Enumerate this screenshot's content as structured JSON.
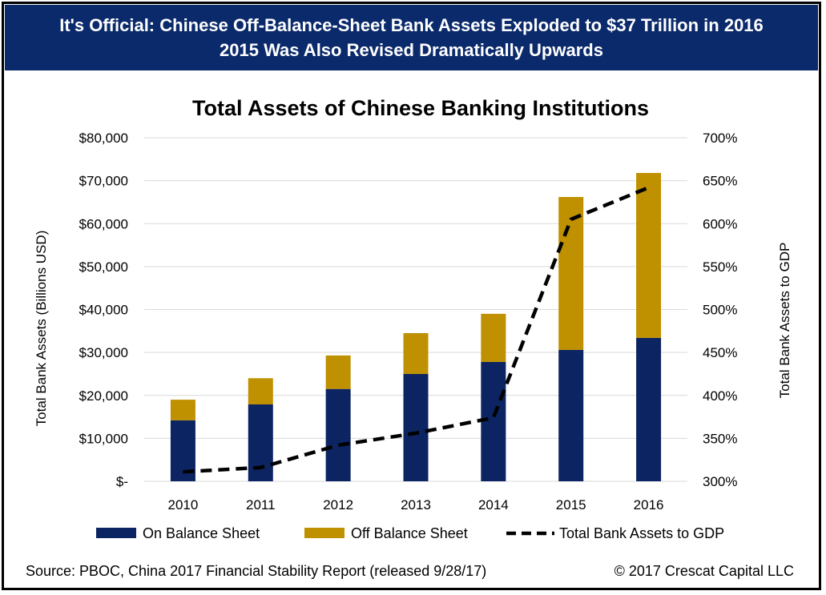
{
  "banner": {
    "line1": "It's Official: Chinese Off-Balance-Sheet Bank Assets Exploded to $37 Trillion in 2016",
    "line2": "2015 Was Also Revised Dramatically Upwards"
  },
  "footer": {
    "source": "Source: PBOC, China 2017 Financial Stability Report (released 9/28/17)",
    "copyright": "© 2017 Crescat Capital LLC"
  },
  "colors": {
    "on_balance": "#0c2461",
    "off_balance": "#bf9000",
    "line": "#000000",
    "banner": "#0b2a6b",
    "grid": "#d9d9d9"
  },
  "chart_data": {
    "type": "bar",
    "title": "Total Assets of Chinese Banking Institutions",
    "ylabel": "Total Bank Assets (Billions USD)",
    "y2label": "Total Bank Assets to GDP",
    "ylim": [
      0,
      80000
    ],
    "y2lim": [
      300,
      700
    ],
    "yticks": [
      "$-",
      "$10,000",
      "$20,000",
      "$30,000",
      "$40,000",
      "$50,000",
      "$60,000",
      "$70,000",
      "$80,000"
    ],
    "y2ticks": [
      "300%",
      "350%",
      "400%",
      "450%",
      "500%",
      "550%",
      "600%",
      "650%",
      "700%"
    ],
    "categories": [
      "2010",
      "2011",
      "2012",
      "2013",
      "2014",
      "2015",
      "2016"
    ],
    "stacked": true,
    "series": [
      {
        "name": "On Balance Sheet",
        "type": "bar",
        "values": [
          14200,
          17900,
          21500,
          25000,
          27800,
          30600,
          33400
        ]
      },
      {
        "name": "Off Balance Sheet",
        "type": "bar",
        "values": [
          4800,
          6100,
          7800,
          9500,
          11200,
          35600,
          38400
        ]
      },
      {
        "name": "Total Bank Assets to GDP",
        "type": "line",
        "axis": "right",
        "style": "dashed",
        "values": [
          311,
          316,
          342,
          356,
          374,
          605,
          642
        ]
      }
    ],
    "grid": true,
    "legend": "bottom"
  }
}
